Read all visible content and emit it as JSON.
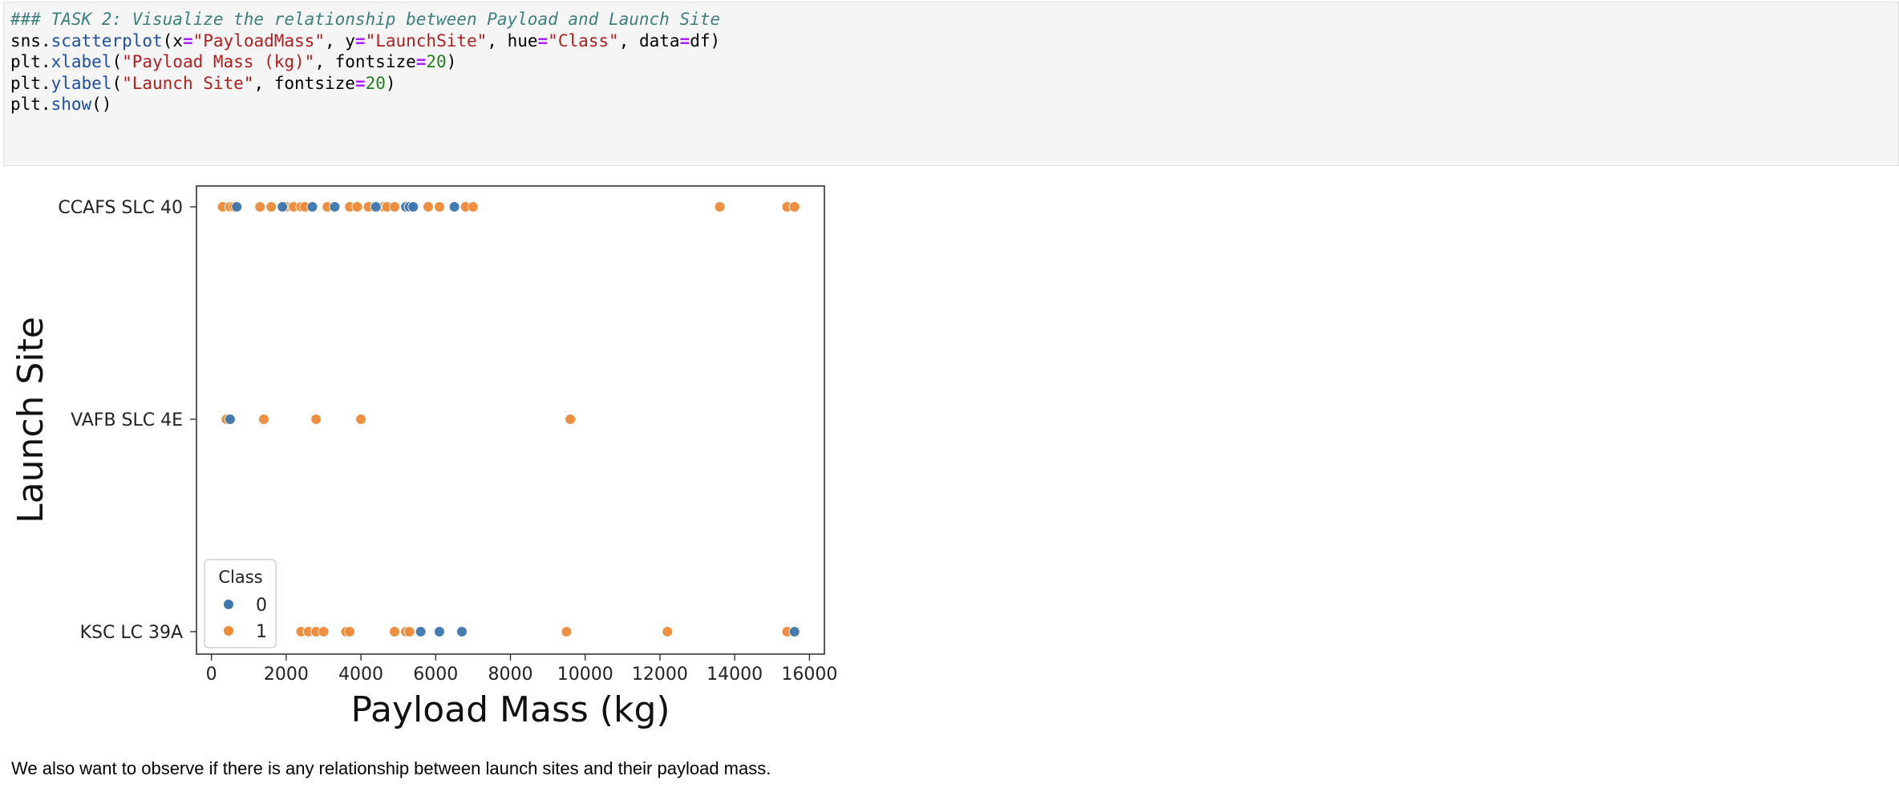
{
  "code_cell": {
    "lines": [
      [
        {
          "t": "### TASK 2: Visualize the relationship between Payload and Launch Site",
          "c": "c-comment"
        }
      ],
      [
        {
          "t": "sns.",
          "c": ""
        },
        {
          "t": "scatterplot",
          "c": "c-fn"
        },
        {
          "t": "(x",
          "c": ""
        },
        {
          "t": "=",
          "c": "c-op"
        },
        {
          "t": "\"PayloadMass\"",
          "c": "c-str"
        },
        {
          "t": ", y",
          "c": ""
        },
        {
          "t": "=",
          "c": "c-op"
        },
        {
          "t": "\"LaunchSite\"",
          "c": "c-str"
        },
        {
          "t": ", hue",
          "c": ""
        },
        {
          "t": "=",
          "c": "c-op"
        },
        {
          "t": "\"Class\"",
          "c": "c-str"
        },
        {
          "t": ", data",
          "c": ""
        },
        {
          "t": "=",
          "c": "c-op"
        },
        {
          "t": "df)",
          "c": ""
        }
      ],
      [
        {
          "t": "plt.",
          "c": ""
        },
        {
          "t": "xlabel",
          "c": "c-fn"
        },
        {
          "t": "(",
          "c": ""
        },
        {
          "t": "\"Payload Mass (kg)\"",
          "c": "c-str"
        },
        {
          "t": ", fontsize",
          "c": ""
        },
        {
          "t": "=",
          "c": "c-op"
        },
        {
          "t": "20",
          "c": "c-num"
        },
        {
          "t": ")",
          "c": ""
        }
      ],
      [
        {
          "t": "plt.",
          "c": ""
        },
        {
          "t": "ylabel",
          "c": "c-fn"
        },
        {
          "t": "(",
          "c": ""
        },
        {
          "t": "\"Launch Site\"",
          "c": "c-str"
        },
        {
          "t": ", fontsize",
          "c": ""
        },
        {
          "t": "=",
          "c": "c-op"
        },
        {
          "t": "20",
          "c": "c-num"
        },
        {
          "t": ")",
          "c": ""
        }
      ],
      [
        {
          "t": "plt.",
          "c": ""
        },
        {
          "t": "show",
          "c": "c-fn"
        },
        {
          "t": "()",
          "c": ""
        }
      ]
    ]
  },
  "chart_data": {
    "type": "scatter",
    "title": "",
    "xlabel": "Payload Mass (kg)",
    "ylabel": "Launch Site",
    "xlim": [
      -400,
      16400
    ],
    "xticks": [
      0,
      2000,
      4000,
      6000,
      8000,
      10000,
      12000,
      14000,
      16000
    ],
    "categories": [
      "CCAFS SLC 40",
      "VAFB SLC 4E",
      "KSC LC 39A"
    ],
    "grid": false,
    "legend": {
      "title": "Class",
      "placement": "lower-left"
    },
    "series": [
      {
        "name": "0",
        "color": "#3d75b0",
        "points": [
          {
            "x": 677,
            "y": "CCAFS SLC 40"
          },
          {
            "x": 1900,
            "y": "CCAFS SLC 40"
          },
          {
            "x": 2700,
            "y": "CCAFS SLC 40"
          },
          {
            "x": 3300,
            "y": "CCAFS SLC 40"
          },
          {
            "x": 4400,
            "y": "CCAFS SLC 40"
          },
          {
            "x": 5200,
            "y": "CCAFS SLC 40"
          },
          {
            "x": 5300,
            "y": "CCAFS SLC 40"
          },
          {
            "x": 5400,
            "y": "CCAFS SLC 40"
          },
          {
            "x": 6500,
            "y": "CCAFS SLC 40"
          },
          {
            "x": 500,
            "y": "VAFB SLC 4E"
          },
          {
            "x": 5600,
            "y": "KSC LC 39A"
          },
          {
            "x": 6100,
            "y": "KSC LC 39A"
          },
          {
            "x": 6700,
            "y": "KSC LC 39A"
          },
          {
            "x": 15600,
            "y": "KSC LC 39A"
          }
        ]
      },
      {
        "name": "1",
        "color": "#ef8a37",
        "points": [
          {
            "x": 300,
            "y": "CCAFS SLC 40"
          },
          {
            "x": 500,
            "y": "CCAFS SLC 40"
          },
          {
            "x": 600,
            "y": "CCAFS SLC 40"
          },
          {
            "x": 1300,
            "y": "CCAFS SLC 40"
          },
          {
            "x": 1600,
            "y": "CCAFS SLC 40"
          },
          {
            "x": 2000,
            "y": "CCAFS SLC 40"
          },
          {
            "x": 2200,
            "y": "CCAFS SLC 40"
          },
          {
            "x": 2400,
            "y": "CCAFS SLC 40"
          },
          {
            "x": 2500,
            "y": "CCAFS SLC 40"
          },
          {
            "x": 3100,
            "y": "CCAFS SLC 40"
          },
          {
            "x": 3700,
            "y": "CCAFS SLC 40"
          },
          {
            "x": 3900,
            "y": "CCAFS SLC 40"
          },
          {
            "x": 4200,
            "y": "CCAFS SLC 40"
          },
          {
            "x": 4600,
            "y": "CCAFS SLC 40"
          },
          {
            "x": 4700,
            "y": "CCAFS SLC 40"
          },
          {
            "x": 4900,
            "y": "CCAFS SLC 40"
          },
          {
            "x": 5800,
            "y": "CCAFS SLC 40"
          },
          {
            "x": 6100,
            "y": "CCAFS SLC 40"
          },
          {
            "x": 6800,
            "y": "CCAFS SLC 40"
          },
          {
            "x": 7000,
            "y": "CCAFS SLC 40"
          },
          {
            "x": 13600,
            "y": "CCAFS SLC 40"
          },
          {
            "x": 15400,
            "y": "CCAFS SLC 40"
          },
          {
            "x": 15600,
            "y": "CCAFS SLC 40"
          },
          {
            "x": 400,
            "y": "VAFB SLC 4E"
          },
          {
            "x": 1400,
            "y": "VAFB SLC 4E"
          },
          {
            "x": 2800,
            "y": "VAFB SLC 4E"
          },
          {
            "x": 4000,
            "y": "VAFB SLC 4E"
          },
          {
            "x": 9600,
            "y": "VAFB SLC 4E"
          },
          {
            "x": 2400,
            "y": "KSC LC 39A"
          },
          {
            "x": 2600,
            "y": "KSC LC 39A"
          },
          {
            "x": 2800,
            "y": "KSC LC 39A"
          },
          {
            "x": 3000,
            "y": "KSC LC 39A"
          },
          {
            "x": 3600,
            "y": "KSC LC 39A"
          },
          {
            "x": 3700,
            "y": "KSC LC 39A"
          },
          {
            "x": 4900,
            "y": "KSC LC 39A"
          },
          {
            "x": 5200,
            "y": "KSC LC 39A"
          },
          {
            "x": 5300,
            "y": "KSC LC 39A"
          },
          {
            "x": 9500,
            "y": "KSC LC 39A"
          },
          {
            "x": 12200,
            "y": "KSC LC 39A"
          },
          {
            "x": 15400,
            "y": "KSC LC 39A"
          }
        ]
      }
    ]
  },
  "markdown": {
    "text": "We also want to observe if there is any relationship between launch sites and their payload mass."
  }
}
